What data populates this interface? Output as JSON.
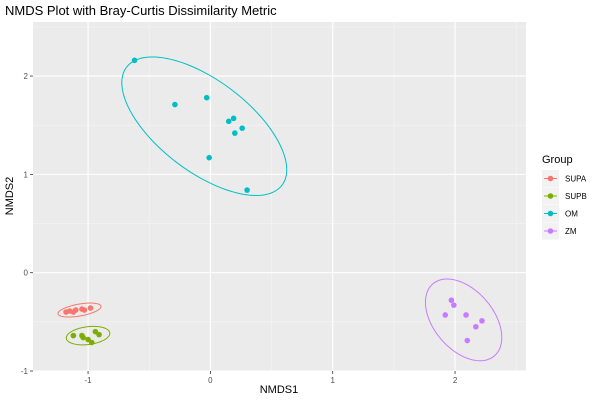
{
  "chart_data": {
    "type": "scatter",
    "title": "NMDS Plot with Bray-Curtis Dissimilarity Metric",
    "xlabel": "NMDS1",
    "ylabel": "NMDS2",
    "xlim": [
      -1.45,
      2.58
    ],
    "ylim": [
      -1.0,
      2.55
    ],
    "xticks": [
      -1,
      0,
      1,
      2
    ],
    "yticks": [
      -1,
      0,
      1,
      2
    ],
    "xtick_labels": [
      "-1",
      "0",
      "1",
      "2"
    ],
    "ytick_labels": [
      "-1",
      "0",
      "1",
      "2"
    ],
    "grid": true,
    "legend": {
      "title": "Group",
      "placement": "right"
    },
    "series": [
      {
        "name": "SUPA",
        "color": "#F8766D",
        "points": [
          {
            "x": -1.18,
            "y": -0.4
          },
          {
            "x": -1.15,
            "y": -0.39
          },
          {
            "x": -1.12,
            "y": -0.4
          },
          {
            "x": -1.1,
            "y": -0.38
          },
          {
            "x": -1.05,
            "y": -0.37
          },
          {
            "x": -1.03,
            "y": -0.38
          },
          {
            "x": -0.98,
            "y": -0.36
          }
        ],
        "ellipse": {
          "cx": -1.07,
          "cy": -0.38,
          "a": 0.18,
          "b": 0.06,
          "angle_deg": 13
        }
      },
      {
        "name": "SUPB",
        "color": "#7CAE00",
        "points": [
          {
            "x": -1.12,
            "y": -0.64
          },
          {
            "x": -1.05,
            "y": -0.64
          },
          {
            "x": -1.04,
            "y": -0.66
          },
          {
            "x": -1.0,
            "y": -0.68
          },
          {
            "x": -0.97,
            "y": -0.71
          },
          {
            "x": -0.94,
            "y": -0.6
          },
          {
            "x": -0.91,
            "y": -0.63
          }
        ],
        "ellipse": {
          "cx": -1.0,
          "cy": -0.64,
          "a": 0.18,
          "b": 0.09,
          "angle_deg": 10
        }
      },
      {
        "name": "OM",
        "color": "#00BFC4",
        "points": [
          {
            "x": -0.62,
            "y": 2.16
          },
          {
            "x": -0.29,
            "y": 1.71
          },
          {
            "x": -0.03,
            "y": 1.78
          },
          {
            "x": 0.15,
            "y": 1.54
          },
          {
            "x": 0.19,
            "y": 1.57
          },
          {
            "x": 0.2,
            "y": 1.42
          },
          {
            "x": 0.26,
            "y": 1.47
          },
          {
            "x": -0.01,
            "y": 1.17
          },
          {
            "x": 0.3,
            "y": 0.84
          }
        ],
        "ellipse": {
          "cx": -0.05,
          "cy": 1.49,
          "a": 0.88,
          "b": 0.42,
          "angle_deg": -47
        }
      },
      {
        "name": "ZM",
        "color": "#C77CFF",
        "points": [
          {
            "x": 1.97,
            "y": -0.28
          },
          {
            "x": 1.99,
            "y": -0.33
          },
          {
            "x": 1.92,
            "y": -0.43
          },
          {
            "x": 2.09,
            "y": -0.43
          },
          {
            "x": 2.22,
            "y": -0.49
          },
          {
            "x": 2.17,
            "y": -0.55
          },
          {
            "x": 2.1,
            "y": -0.69
          }
        ],
        "ellipse": {
          "cx": 2.07,
          "cy": -0.48,
          "a": 0.45,
          "b": 0.26,
          "angle_deg": -62
        }
      }
    ]
  }
}
